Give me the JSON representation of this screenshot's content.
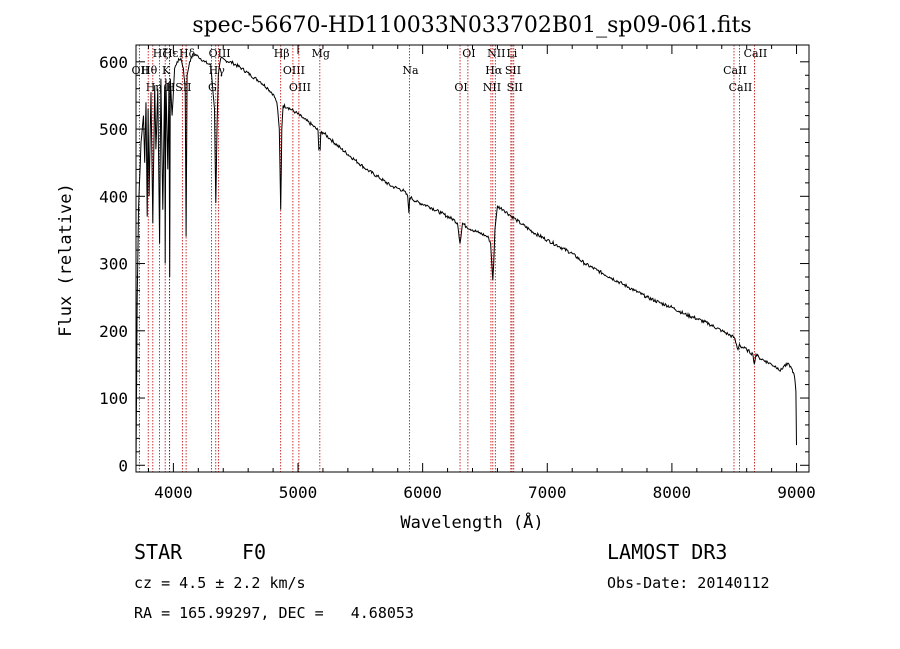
{
  "chart_data": {
    "type": "line",
    "title": "spec-56670-HD110033N033702B01_sp09-061.fits",
    "xlabel": "Wavelength (Å)",
    "ylabel": "Flux (relative)",
    "xlim": [
      3700,
      9100
    ],
    "ylim": [
      -10,
      625
    ],
    "x_ticks": [
      4000,
      5000,
      6000,
      7000,
      8000,
      9000
    ],
    "y_ticks": [
      0,
      100,
      200,
      300,
      400,
      500,
      600
    ],
    "series": [
      {
        "name": "spectrum",
        "x": [
          3700,
          3705,
          3710,
          3720,
          3740,
          3760,
          3770,
          3780,
          3790,
          3797,
          3805,
          3820,
          3835,
          3850,
          3860,
          3875,
          3889,
          3900,
          3915,
          3930,
          3934,
          3940,
          3955,
          3965,
          3970,
          3975,
          3990,
          4010,
          4030,
          4060,
          4080,
          4095,
          4102,
          4110,
          4130,
          4160,
          4200,
          4250,
          4300,
          4330,
          4340,
          4350,
          4360,
          4380,
          4420,
          4480,
          4550,
          4620,
          4700,
          4760,
          4800,
          4830,
          4850,
          4861,
          4870,
          4880,
          4920,
          4980,
          5050,
          5120,
          5160,
          5167,
          5172,
          5178,
          5183,
          5200,
          5260,
          5350,
          5450,
          5550,
          5650,
          5750,
          5800,
          5850,
          5880,
          5890,
          5896,
          5905,
          5950,
          6050,
          6150,
          6250,
          6280,
          6300,
          6320,
          6350,
          6400,
          6450,
          6500,
          6530,
          6545,
          6555,
          6563,
          6570,
          6580,
          6600,
          6650,
          6700,
          6750,
          6800,
          6900,
          7000,
          7100,
          7200,
          7300,
          7400,
          7500,
          7600,
          7650,
          7700,
          7800,
          7900,
          8000,
          8100,
          8200,
          8300,
          8400,
          8450,
          8500,
          8530,
          8542,
          8550,
          8600,
          8650,
          8662,
          8675,
          8700,
          8750,
          8800,
          8850,
          8870,
          8900,
          8940,
          8960,
          8975,
          8985,
          8995,
          9000
        ],
        "values": [
          0,
          120,
          250,
          380,
          480,
          520,
          450,
          540,
          370,
          530,
          400,
          555,
          360,
          565,
          470,
          560,
          330,
          575,
          380,
          565,
          300,
          575,
          440,
          570,
          280,
          575,
          520,
          590,
          600,
          605,
          590,
          560,
          340,
          580,
          600,
          612,
          608,
          600,
          595,
          530,
          390,
          500,
          580,
          605,
          602,
          598,
          590,
          580,
          570,
          560,
          552,
          540,
          500,
          380,
          500,
          535,
          532,
          525,
          515,
          505,
          498,
          470,
          472,
          470,
          495,
          495,
          485,
          470,
          455,
          440,
          428,
          415,
          412,
          408,
          400,
          375,
          398,
          398,
          392,
          385,
          375,
          365,
          360,
          330,
          360,
          355,
          350,
          346,
          342,
          338,
          330,
          300,
          275,
          300,
          350,
          385,
          380,
          372,
          365,
          358,
          345,
          335,
          325,
          315,
          300,
          290,
          280,
          270,
          265,
          260,
          250,
          242,
          235,
          225,
          218,
          210,
          200,
          195,
          190,
          172,
          180,
          177,
          172,
          165,
          150,
          165,
          160,
          155,
          150,
          145,
          140,
          148,
          150,
          144,
          138,
          130,
          110,
          30
        ]
      }
    ],
    "lines": [
      {
        "label": "Hδ",
        "x": 4102
      },
      {
        "label": "K",
        "x": 3934
      },
      {
        "label": "H",
        "x": 3968
      },
      {
        "label": "Hε",
        "x": 3970
      },
      {
        "label": "OII",
        "x": 3727
      },
      {
        "label": "Hη",
        "x": 3835
      },
      {
        "label": "Hζ",
        "x": 3889
      },
      {
        "label": "Hθ",
        "x": 3798
      },
      {
        "label": "SII",
        "x": 4072
      },
      {
        "label": "OIII",
        "x": 4363
      },
      {
        "label": "Hγ",
        "x": 4340
      },
      {
        "label": "G",
        "x": 4305
      },
      {
        "label": "Hβ",
        "x": 4861
      },
      {
        "label": "OIII",
        "x": 4959
      },
      {
        "label": "OIII",
        "x": 5007
      },
      {
        "label": "Mg",
        "x": 5175
      },
      {
        "label": "Na",
        "x": 5894
      },
      {
        "label": "OI",
        "x": 6300
      },
      {
        "label": "OI",
        "x": 6363
      },
      {
        "label": "Hα",
        "x": 6563
      },
      {
        "label": "NII",
        "x": 6548
      },
      {
        "label": "NII",
        "x": 6583
      },
      {
        "label": "SII",
        "x": 6717
      },
      {
        "label": "SII",
        "x": 6731
      },
      {
        "label": "Li",
        "x": 6708
      },
      {
        "label": "CaII",
        "x": 8498
      },
      {
        "label": "CaII",
        "x": 8542
      },
      {
        "label": "CaII",
        "x": 8662
      }
    ],
    "line_color": "#c00000"
  },
  "info": {
    "class_label": "STAR",
    "subclass": "F0",
    "survey": "LAMOST DR3",
    "cz": "cz = 4.5 ± 2.2 km/s",
    "obs_date": "Obs-Date: 20140112",
    "coords": "RA = 165.99297, DEC =   4.68053"
  }
}
